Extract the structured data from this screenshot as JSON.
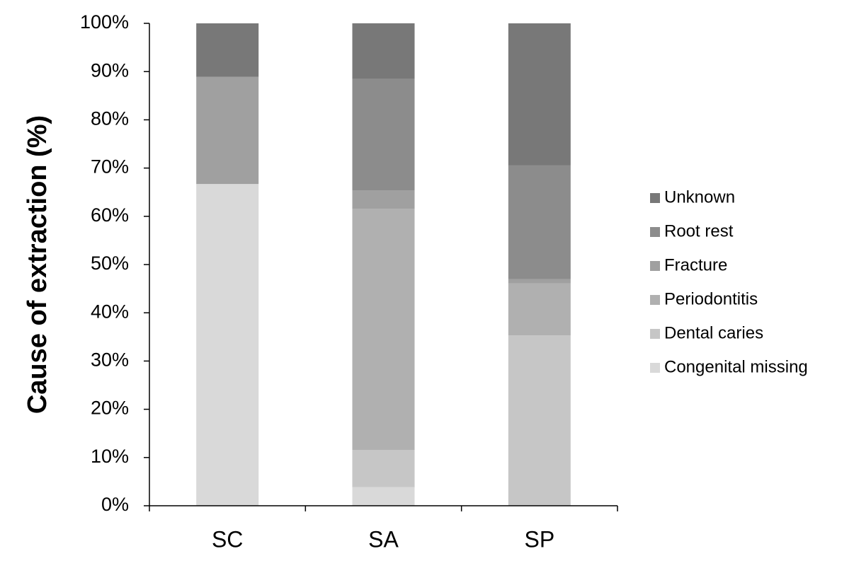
{
  "chart_data": {
    "type": "stacked_bar",
    "y_label": "Cause of extraction (%)",
    "categories": [
      "SC",
      "SA",
      "SP"
    ],
    "series": [
      {
        "name": "Congenital missing",
        "color": "#d9d9d9",
        "values": [
          66.7,
          3.85,
          0
        ]
      },
      {
        "name": "Dental caries",
        "color": "#c6c6c6",
        "values": [
          0,
          7.69,
          35.3
        ]
      },
      {
        "name": "Periodontitis",
        "color": "#b0b0b0",
        "values": [
          0,
          50,
          10.8
        ]
      },
      {
        "name": "Fracture",
        "color": "#a0a0a0",
        "values": [
          22.2,
          3.85,
          0.9
        ]
      },
      {
        "name": "Root rest",
        "color": "#8c8c8c",
        "values": [
          0,
          23.08,
          23.6
        ]
      },
      {
        "name": "Unknown",
        "color": "#787878",
        "values": [
          11.1,
          11.54,
          29.4
        ]
      }
    ],
    "ylim": [
      0,
      100
    ],
    "yticks": [
      {
        "value": 0,
        "label": "0%"
      },
      {
        "value": 10,
        "label": "10%"
      },
      {
        "value": 20,
        "label": "20%"
      },
      {
        "value": 30,
        "label": "30%"
      },
      {
        "value": 40,
        "label": "40%"
      },
      {
        "value": 50,
        "label": "50%"
      },
      {
        "value": 60,
        "label": "60%"
      },
      {
        "value": 70,
        "label": "70%"
      },
      {
        "value": 80,
        "label": "80%"
      },
      {
        "value": 90,
        "label": "90%"
      },
      {
        "value": 100,
        "label": "100%"
      }
    ],
    "legend": "right"
  }
}
